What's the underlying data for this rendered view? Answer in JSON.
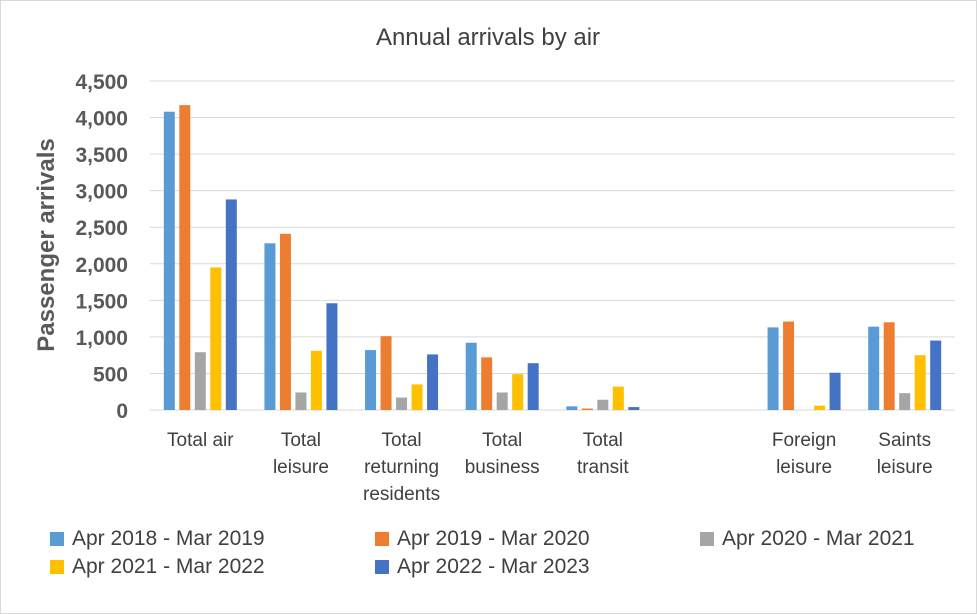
{
  "chart_data": {
    "type": "bar",
    "title": "Annual arrivals by air",
    "ylabel": "Passenger arrivals",
    "ylim": [
      0,
      4500
    ],
    "ytick_step": 500,
    "ytick_labels": [
      "0",
      "500",
      "1,000",
      "1,500",
      "2,000",
      "2,500",
      "3,000",
      "3,500",
      "4,000",
      "4,500"
    ],
    "gridlines": true,
    "legend_position": "bottom",
    "categories": [
      [
        "Total air"
      ],
      [
        "Total",
        "leisure"
      ],
      [
        "Total",
        "returning",
        "residents"
      ],
      [
        "Total",
        "business"
      ],
      [
        "Total",
        "transit"
      ],
      [],
      [
        "Foreign",
        "leisure"
      ],
      [
        "Saints",
        "leisure"
      ]
    ],
    "series": [
      {
        "name": "Apr 2018 - Mar 2019",
        "color": "#5b9bd5",
        "values": [
          4080,
          2280,
          820,
          920,
          50,
          null,
          1130,
          1140
        ]
      },
      {
        "name": "Apr 2019 - Mar 2020",
        "color": "#ed7d31",
        "values": [
          4170,
          2410,
          1010,
          720,
          20,
          null,
          1210,
          1200
        ]
      },
      {
        "name": "Apr 2020 - Mar 2021",
        "color": "#a5a5a5",
        "values": [
          790,
          240,
          170,
          240,
          140,
          null,
          0,
          230
        ]
      },
      {
        "name": "Apr 2021 - Mar 2022",
        "color": "#ffc000",
        "values": [
          1950,
          810,
          350,
          490,
          320,
          null,
          60,
          750
        ]
      },
      {
        "name": "Apr 2022 - Mar 2023",
        "color": "#4472c4",
        "values": [
          2880,
          1460,
          760,
          640,
          40,
          null,
          510,
          950
        ]
      }
    ]
  }
}
